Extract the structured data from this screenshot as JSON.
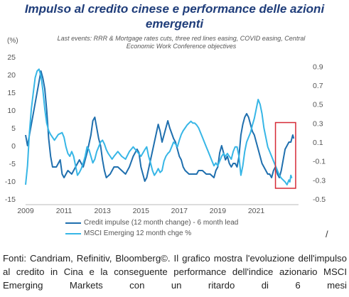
{
  "header": {
    "title": "Impulso al credito cinese e performance delle azioni emergenti",
    "subtitle": "Last events: RRR & Mortgage rates cuts, three red lines easing, COVID easing, Central Economic Work Conference objectives",
    "unit_label": "(%)"
  },
  "footer": {
    "caption": "Fonti: Candriam, Refinitiv, Bloomberg©. Il grafico mostra l'evoluzione dell'impulso al credito in Cina e la conseguente performance dell'indice azionario MSCI Emerging Markets con un ritardo di 6 mesi",
    "slash": "/"
  },
  "colors": {
    "credit": "#1f6fae",
    "msci": "#37b6e6",
    "highlight": "#d62a36",
    "axis_text": "#555555"
  },
  "chart_data": {
    "type": "line",
    "title": "Impulso al credito cinese e performance delle azioni emergenti",
    "left_axis": {
      "unit": "(%)",
      "ylim": [
        -15,
        25
      ],
      "ticks": [
        25,
        20,
        15,
        10,
        5,
        0,
        -5,
        -10,
        -15
      ]
    },
    "right_axis": {
      "ylim": [
        -0.5,
        1.0
      ],
      "ticks": [
        0.9,
        0.7,
        0.5,
        0.3,
        0.1,
        -0.1,
        -0.3,
        -0.5
      ]
    },
    "x_axis": {
      "xlim": [
        2009.0,
        2023.2
      ],
      "ticks": [
        2009,
        2011,
        2013,
        2015,
        2017,
        2019,
        2021
      ]
    },
    "grid": false,
    "legend_placement": "bottom",
    "highlight_box": {
      "x": [
        2022.0,
        2023.05
      ],
      "y": [
        -12,
        6.5
      ]
    },
    "series": [
      {
        "name": "Credit impulse (12 month change) - 6 month lead",
        "axis": "left",
        "color": "#1f6fae",
        "points": [
          [
            2009.0,
            3
          ],
          [
            2009.1,
            0
          ],
          [
            2009.2,
            3
          ],
          [
            2009.3,
            6
          ],
          [
            2009.4,
            9
          ],
          [
            2009.5,
            12
          ],
          [
            2009.6,
            15
          ],
          [
            2009.7,
            18
          ],
          [
            2009.8,
            21
          ],
          [
            2009.9,
            19
          ],
          [
            2010.0,
            16
          ],
          [
            2010.1,
            10
          ],
          [
            2010.2,
            2
          ],
          [
            2010.3,
            -3
          ],
          [
            2010.4,
            -6
          ],
          [
            2010.6,
            -6
          ],
          [
            2010.8,
            -4
          ],
          [
            2010.9,
            -8
          ],
          [
            2011.0,
            -9
          ],
          [
            2011.2,
            -7
          ],
          [
            2011.4,
            -8
          ],
          [
            2011.6,
            -6
          ],
          [
            2011.8,
            -4
          ],
          [
            2011.9,
            -5
          ],
          [
            2012.0,
            -6
          ],
          [
            2012.2,
            -2
          ],
          [
            2012.4,
            3
          ],
          [
            2012.5,
            7
          ],
          [
            2012.6,
            8
          ],
          [
            2012.7,
            5
          ],
          [
            2012.8,
            2
          ],
          [
            2012.9,
            0
          ],
          [
            2013.0,
            -4
          ],
          [
            2013.1,
            -7
          ],
          [
            2013.2,
            -9
          ],
          [
            2013.4,
            -8
          ],
          [
            2013.6,
            -6
          ],
          [
            2013.8,
            -6
          ],
          [
            2014.0,
            -7
          ],
          [
            2014.2,
            -8
          ],
          [
            2014.4,
            -6
          ],
          [
            2014.6,
            -3
          ],
          [
            2014.8,
            -1
          ],
          [
            2014.9,
            -2
          ],
          [
            2015.0,
            -6
          ],
          [
            2015.1,
            -8
          ],
          [
            2015.2,
            -10
          ],
          [
            2015.3,
            -9
          ],
          [
            2015.5,
            -4
          ],
          [
            2015.7,
            1
          ],
          [
            2015.9,
            6
          ],
          [
            2016.0,
            4
          ],
          [
            2016.1,
            1
          ],
          [
            2016.2,
            3
          ],
          [
            2016.4,
            7
          ],
          [
            2016.5,
            5
          ],
          [
            2016.7,
            2
          ],
          [
            2016.8,
            1
          ],
          [
            2016.9,
            -1
          ],
          [
            2017.0,
            -3
          ],
          [
            2017.1,
            -4
          ],
          [
            2017.2,
            -6
          ],
          [
            2017.3,
            -7
          ],
          [
            2017.5,
            -8
          ],
          [
            2017.7,
            -8
          ],
          [
            2017.9,
            -8
          ],
          [
            2018.0,
            -7
          ],
          [
            2018.2,
            -7
          ],
          [
            2018.4,
            -8
          ],
          [
            2018.6,
            -8
          ],
          [
            2018.8,
            -9
          ],
          [
            2018.9,
            -7
          ],
          [
            2019.0,
            -6
          ],
          [
            2019.1,
            -2
          ],
          [
            2019.2,
            0
          ],
          [
            2019.3,
            -2
          ],
          [
            2019.4,
            -4
          ],
          [
            2019.5,
            -3
          ],
          [
            2019.6,
            -5
          ],
          [
            2019.7,
            -6
          ],
          [
            2019.8,
            -5
          ],
          [
            2019.9,
            -5
          ],
          [
            2020.0,
            -6
          ],
          [
            2020.1,
            -3
          ],
          [
            2020.2,
            3
          ],
          [
            2020.3,
            6
          ],
          [
            2020.4,
            8
          ],
          [
            2020.5,
            9
          ],
          [
            2020.6,
            8
          ],
          [
            2020.7,
            6
          ],
          [
            2020.8,
            4
          ],
          [
            2020.9,
            3
          ],
          [
            2021.0,
            1
          ],
          [
            2021.1,
            -1
          ],
          [
            2021.2,
            -3
          ],
          [
            2021.3,
            -5
          ],
          [
            2021.4,
            -6
          ],
          [
            2021.5,
            -7
          ],
          [
            2021.6,
            -8
          ],
          [
            2021.7,
            -8
          ],
          [
            2021.8,
            -9
          ],
          [
            2021.9,
            -7
          ],
          [
            2022.0,
            -6
          ],
          [
            2022.1,
            -8
          ],
          [
            2022.2,
            -9
          ],
          [
            2022.3,
            -7
          ],
          [
            2022.4,
            -4
          ],
          [
            2022.5,
            -1
          ],
          [
            2022.6,
            0
          ],
          [
            2022.7,
            1
          ],
          [
            2022.8,
            1
          ],
          [
            2022.9,
            3
          ],
          [
            2022.95,
            2
          ]
        ]
      },
      {
        "name": "MSCI Emerging 12 month chge %",
        "axis": "right",
        "color": "#37b6e6",
        "points": [
          [
            2009.0,
            -0.35
          ],
          [
            2009.1,
            -0.15
          ],
          [
            2009.2,
            0.2
          ],
          [
            2009.3,
            0.45
          ],
          [
            2009.4,
            0.62
          ],
          [
            2009.5,
            0.78
          ],
          [
            2009.6,
            0.85
          ],
          [
            2009.7,
            0.87
          ],
          [
            2009.8,
            0.8
          ],
          [
            2009.9,
            0.65
          ],
          [
            2010.0,
            0.45
          ],
          [
            2010.1,
            0.3
          ],
          [
            2010.2,
            0.22
          ],
          [
            2010.3,
            0.18
          ],
          [
            2010.4,
            0.15
          ],
          [
            2010.5,
            0.12
          ],
          [
            2010.7,
            0.18
          ],
          [
            2010.9,
            0.2
          ],
          [
            2011.0,
            0.15
          ],
          [
            2011.1,
            0.05
          ],
          [
            2011.2,
            -0.02
          ],
          [
            2011.3,
            -0.05
          ],
          [
            2011.4,
            0.0
          ],
          [
            2011.5,
            -0.05
          ],
          [
            2011.6,
            -0.15
          ],
          [
            2011.7,
            -0.25
          ],
          [
            2011.8,
            -0.22
          ],
          [
            2011.9,
            -0.18
          ],
          [
            2012.0,
            -0.12
          ],
          [
            2012.1,
            -0.05
          ],
          [
            2012.2,
            0.05
          ],
          [
            2012.3,
            0.02
          ],
          [
            2012.4,
            -0.05
          ],
          [
            2012.5,
            -0.12
          ],
          [
            2012.6,
            -0.08
          ],
          [
            2012.7,
            0.0
          ],
          [
            2012.8,
            0.05
          ],
          [
            2012.9,
            0.1
          ],
          [
            2013.0,
            0.12
          ],
          [
            2013.1,
            0.08
          ],
          [
            2013.2,
            0.02
          ],
          [
            2013.3,
            -0.02
          ],
          [
            2013.4,
            -0.05
          ],
          [
            2013.5,
            -0.08
          ],
          [
            2013.6,
            -0.05
          ],
          [
            2013.8,
            0.0
          ],
          [
            2014.0,
            -0.05
          ],
          [
            2014.2,
            -0.08
          ],
          [
            2014.4,
            0.0
          ],
          [
            2014.6,
            0.05
          ],
          [
            2014.8,
            0.0
          ],
          [
            2015.0,
            -0.05
          ],
          [
            2015.2,
            0.02
          ],
          [
            2015.3,
            0.05
          ],
          [
            2015.4,
            -0.05
          ],
          [
            2015.5,
            -0.12
          ],
          [
            2015.6,
            -0.2
          ],
          [
            2015.7,
            -0.25
          ],
          [
            2015.8,
            -0.22
          ],
          [
            2015.9,
            -0.18
          ],
          [
            2016.0,
            -0.22
          ],
          [
            2016.1,
            -0.2
          ],
          [
            2016.2,
            -0.1
          ],
          [
            2016.3,
            -0.05
          ],
          [
            2016.4,
            -0.02
          ],
          [
            2016.5,
            0.0
          ],
          [
            2016.6,
            0.05
          ],
          [
            2016.7,
            0.1
          ],
          [
            2016.8,
            0.08
          ],
          [
            2016.9,
            0.05
          ],
          [
            2017.0,
            0.12
          ],
          [
            2017.1,
            0.18
          ],
          [
            2017.2,
            0.22
          ],
          [
            2017.3,
            0.25
          ],
          [
            2017.4,
            0.28
          ],
          [
            2017.5,
            0.3
          ],
          [
            2017.6,
            0.32
          ],
          [
            2017.7,
            0.3
          ],
          [
            2017.8,
            0.3
          ],
          [
            2017.9,
            0.28
          ],
          [
            2018.0,
            0.25
          ],
          [
            2018.2,
            0.15
          ],
          [
            2018.3,
            0.1
          ],
          [
            2018.4,
            0.05
          ],
          [
            2018.5,
            0.0
          ],
          [
            2018.6,
            -0.05
          ],
          [
            2018.7,
            -0.1
          ],
          [
            2018.8,
            -0.15
          ],
          [
            2018.9,
            -0.12
          ],
          [
            2019.0,
            -0.15
          ],
          [
            2019.1,
            -0.1
          ],
          [
            2019.2,
            -0.05
          ],
          [
            2019.3,
            -0.02
          ],
          [
            2019.4,
            -0.05
          ],
          [
            2019.5,
            -0.02
          ],
          [
            2019.6,
            -0.05
          ],
          [
            2019.7,
            -0.08
          ],
          [
            2019.8,
            0.0
          ],
          [
            2019.9,
            0.05
          ],
          [
            2020.0,
            0.05
          ],
          [
            2020.1,
            -0.05
          ],
          [
            2020.2,
            -0.25
          ],
          [
            2020.3,
            -0.15
          ],
          [
            2020.4,
            0.0
          ],
          [
            2020.5,
            0.1
          ],
          [
            2020.6,
            0.15
          ],
          [
            2020.7,
            0.2
          ],
          [
            2020.8,
            0.28
          ],
          [
            2020.9,
            0.35
          ],
          [
            2021.0,
            0.45
          ],
          [
            2021.1,
            0.55
          ],
          [
            2021.2,
            0.5
          ],
          [
            2021.3,
            0.4
          ],
          [
            2021.4,
            0.25
          ],
          [
            2021.5,
            0.15
          ],
          [
            2021.6,
            0.05
          ],
          [
            2021.7,
            0.0
          ],
          [
            2021.8,
            -0.05
          ],
          [
            2021.9,
            -0.1
          ],
          [
            2022.0,
            -0.15
          ],
          [
            2022.1,
            -0.2
          ],
          [
            2022.2,
            -0.25
          ],
          [
            2022.3,
            -0.28
          ],
          [
            2022.4,
            -0.3
          ],
          [
            2022.5,
            -0.32
          ],
          [
            2022.6,
            -0.35
          ],
          [
            2022.7,
            -0.3
          ],
          [
            2022.75,
            -0.32
          ],
          [
            2022.8,
            -0.25
          ],
          [
            2022.85,
            -0.28
          ]
        ]
      }
    ]
  }
}
